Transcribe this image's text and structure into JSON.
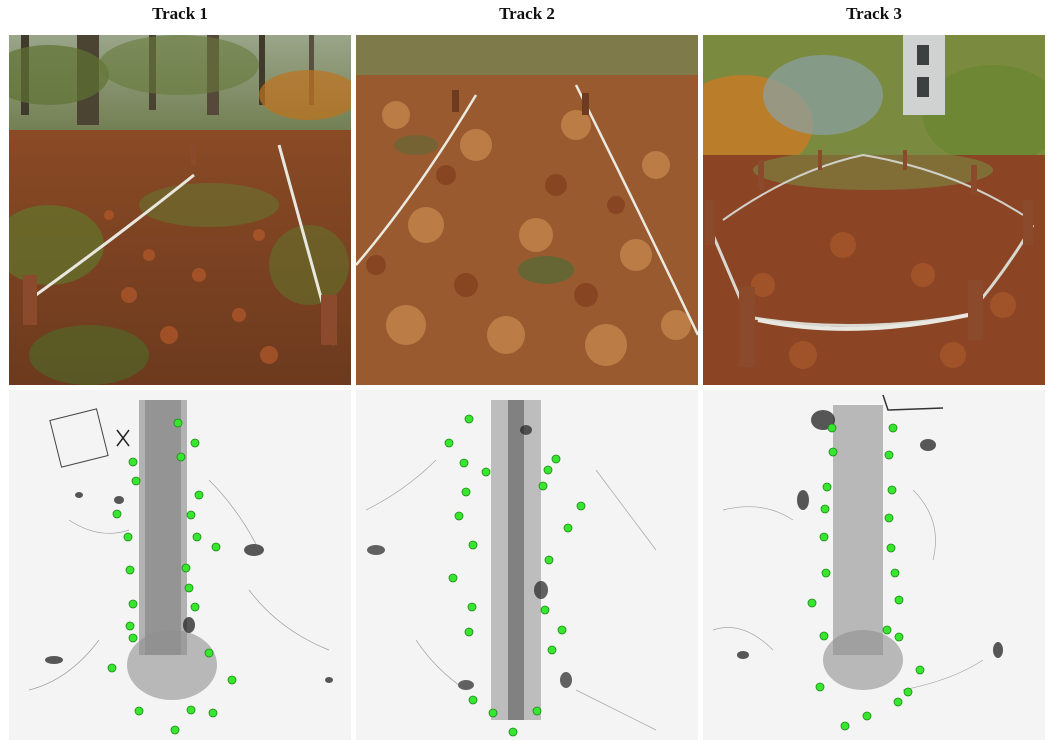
{
  "tracks": [
    {
      "title": "Track 1",
      "photo_alt": "leaf-covered forest floor with rope-and-post track, broadleaf trees in background"
    },
    {
      "title": "Track 2",
      "photo_alt": "dense dry oak leaves covering ground between two ropes"
    },
    {
      "title": "Track 3",
      "photo_alt": "roped oval track with wooden posts in autumn woodland, grey tower behind"
    }
  ],
  "colors": {
    "marker": "#39e62f",
    "marker_edge": "#1a8a14",
    "leaf_dark": "#7a3416",
    "leaf_mid": "#a5532a",
    "leaf_light": "#c98a4c",
    "grass": "#5d7a2c"
  }
}
